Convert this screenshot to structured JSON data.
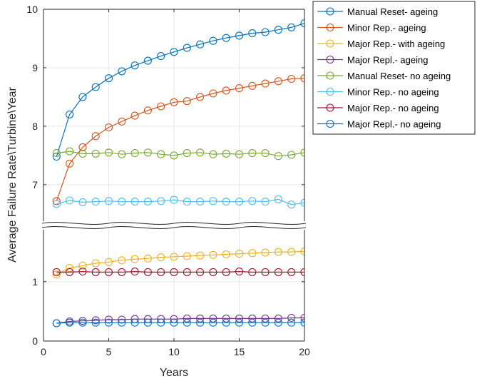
{
  "chart_data": {
    "type": "line",
    "title": "",
    "xlabel": "Years",
    "ylabel": "Average Failure Rate\\Turbine\\Year",
    "x": [
      1,
      2,
      3,
      4,
      5,
      6,
      7,
      8,
      9,
      10,
      11,
      12,
      13,
      14,
      15,
      16,
      17,
      18,
      19,
      20
    ],
    "xlim": [
      0,
      20
    ],
    "xticks": [
      0,
      5,
      10,
      15,
      20
    ],
    "y_axis_break": true,
    "upper_ylim": [
      6.4,
      10
    ],
    "upper_yticks": [
      7,
      8,
      9,
      10
    ],
    "lower_ylim": [
      0,
      1.85
    ],
    "lower_yticks": [
      0,
      1
    ],
    "grid": true,
    "legend_position": "outside-top-right",
    "series": [
      {
        "name": "Manual Reset- ageing",
        "color": "#0072BD",
        "values": [
          7.48,
          8.2,
          8.5,
          8.67,
          8.82,
          8.94,
          9.04,
          9.12,
          9.2,
          9.27,
          9.34,
          9.4,
          9.46,
          9.51,
          9.55,
          9.59,
          9.61,
          9.65,
          9.69,
          9.76
        ]
      },
      {
        "name": "Minor Rep.- ageing",
        "color": "#D95319",
        "values": [
          6.72,
          7.36,
          7.64,
          7.83,
          7.98,
          8.08,
          8.18,
          8.27,
          8.34,
          8.41,
          8.43,
          8.5,
          8.56,
          8.61,
          8.65,
          8.69,
          8.73,
          8.77,
          8.81,
          8.82
        ]
      },
      {
        "name": "Major Rep.- with ageing",
        "color": "#EDB120",
        "values": [
          1.12,
          1.23,
          1.27,
          1.31,
          1.33,
          1.36,
          1.38,
          1.39,
          1.41,
          1.42,
          1.43,
          1.44,
          1.45,
          1.46,
          1.47,
          1.48,
          1.49,
          1.5,
          1.5,
          1.51
        ]
      },
      {
        "name": "Major Repl.- ageing",
        "color": "#7E2F8E",
        "values": [
          0.3,
          0.33,
          0.34,
          0.35,
          0.36,
          0.36,
          0.37,
          0.37,
          0.37,
          0.37,
          0.38,
          0.38,
          0.38,
          0.38,
          0.38,
          0.38,
          0.38,
          0.38,
          0.39,
          0.39
        ]
      },
      {
        "name": "Manual Reset- no ageing",
        "color": "#77AC30",
        "values": [
          7.54,
          7.57,
          7.53,
          7.53,
          7.55,
          7.52,
          7.54,
          7.55,
          7.52,
          7.5,
          7.54,
          7.55,
          7.52,
          7.53,
          7.52,
          7.54,
          7.54,
          7.49,
          7.51,
          7.55
        ]
      },
      {
        "name": "Minor Rep.- no ageing",
        "color": "#4DBEEE",
        "values": [
          6.67,
          6.73,
          6.7,
          6.71,
          6.72,
          6.71,
          6.71,
          6.71,
          6.72,
          6.74,
          6.71,
          6.71,
          6.72,
          6.71,
          6.71,
          6.72,
          6.71,
          6.75,
          6.66,
          6.69
        ]
      },
      {
        "name": "Major Rep.- no ageing",
        "color": "#A2142F",
        "values": [
          1.16,
          1.16,
          1.17,
          1.16,
          1.16,
          1.16,
          1.17,
          1.16,
          1.16,
          1.16,
          1.16,
          1.16,
          1.16,
          1.16,
          1.17,
          1.16,
          1.16,
          1.16,
          1.16,
          1.16
        ]
      },
      {
        "name": "Major Repl.- no ageing",
        "color": "#0072BD",
        "values": [
          0.3,
          0.31,
          0.31,
          0.31,
          0.31,
          0.31,
          0.31,
          0.31,
          0.31,
          0.31,
          0.31,
          0.31,
          0.31,
          0.31,
          0.31,
          0.31,
          0.31,
          0.31,
          0.31,
          0.31
        ]
      }
    ]
  }
}
